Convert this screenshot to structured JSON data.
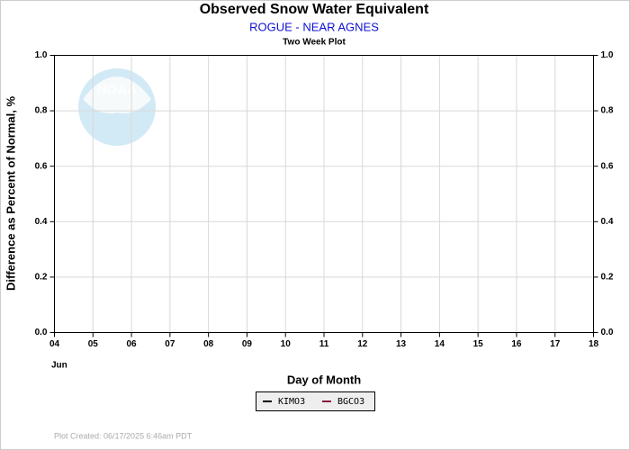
{
  "chart_data": {
    "type": "line",
    "title": "Observed Snow Water Equivalent",
    "subtitle": "ROGUE - NEAR AGNES",
    "plot_label": "Two Week Plot",
    "xlabel": "Day of Month",
    "ylabel": "Difference as Percent of Normal, %",
    "month_label": "Jun",
    "watermark": "NOAA",
    "footer": "Plot Created: 06/17/2025 6:46am PDT",
    "x": [],
    "series": [
      {
        "name": "KIMO3",
        "color": "#000000",
        "values": []
      },
      {
        "name": "BGCO3",
        "color": "#8b1a3a",
        "values": []
      }
    ],
    "xlim": [
      4,
      18
    ],
    "xticks": [
      {
        "value": 4,
        "label": "04"
      },
      {
        "value": 5,
        "label": "05"
      },
      {
        "value": 6,
        "label": "06"
      },
      {
        "value": 7,
        "label": "07"
      },
      {
        "value": 8,
        "label": "08"
      },
      {
        "value": 9,
        "label": "09"
      },
      10,
      11,
      12,
      13,
      14,
      15,
      16,
      17,
      18
    ],
    "ylim": [
      0,
      1
    ],
    "yticks": [
      {
        "value": 0,
        "label": "0.0"
      },
      {
        "value": 0.2,
        "label": "0.2"
      },
      {
        "value": 0.4,
        "label": "0.4"
      },
      {
        "value": 0.6,
        "label": "0.6"
      },
      {
        "value": 0.8,
        "label": "0.8"
      },
      {
        "value": 1,
        "label": "1.0"
      }
    ],
    "y2lim": [
      0,
      1
    ],
    "y2ticks": [
      {
        "value": 0,
        "label": "0.0"
      },
      {
        "value": 0.2,
        "label": "0.2"
      },
      {
        "value": 0.4,
        "label": "0.4"
      },
      {
        "value": 0.6,
        "label": "0.6"
      },
      {
        "value": 0.8,
        "label": "0.8"
      },
      {
        "value": 1,
        "label": "1.0"
      }
    ],
    "grid": true
  }
}
